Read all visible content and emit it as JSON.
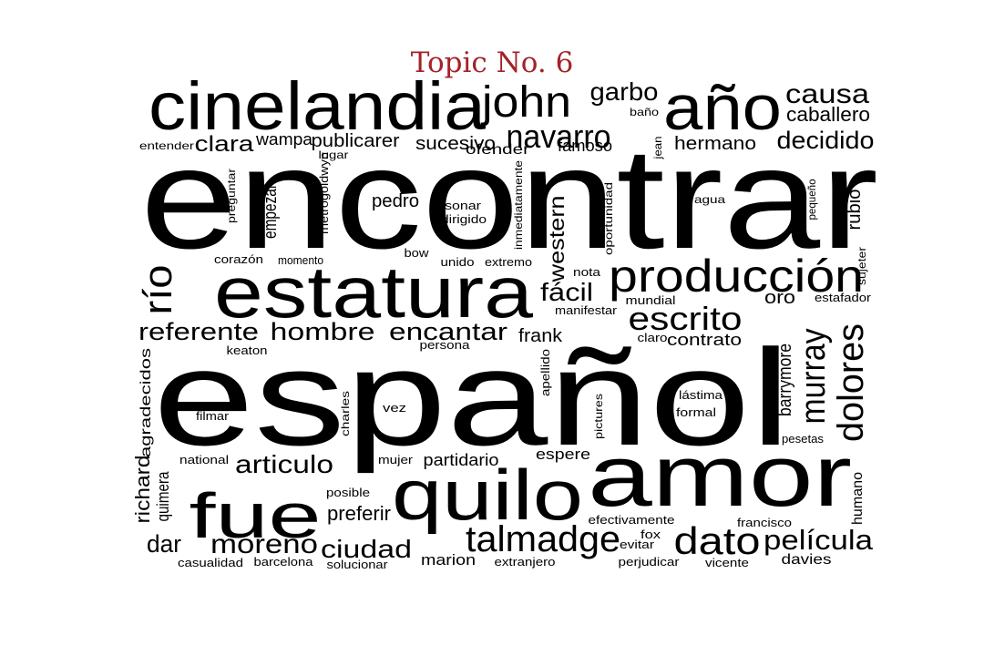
{
  "title": "Topic No. 6",
  "colors": {
    "title": "#a3222a",
    "words": "#000000",
    "background": "#ffffff"
  },
  "words": [
    "encontrar",
    "español",
    "cinelandia",
    "estatura",
    "amor",
    "quilo",
    "fue",
    "año",
    "producción",
    "john",
    "navarro",
    "talmadge",
    "dato",
    "dolores",
    "murray",
    "escrito",
    "río",
    "garbo",
    "causa",
    "caballero",
    "decidido",
    "película",
    "moreno",
    "articulo",
    "hombre",
    "referente",
    "encantar",
    "ciudad",
    "dar",
    "fácil",
    "western",
    "clara",
    "publicarer",
    "sucesivo",
    "hermano",
    "richard",
    "barrymore",
    "preferir",
    "empezar",
    "pedro",
    "rubio",
    "oro",
    "frank",
    "contrato",
    "wampa",
    "ofender",
    "famoso",
    "partidario",
    "espere",
    "quimera",
    "humano",
    "agradecidos",
    "davies",
    "marion",
    "sonar",
    "dirigido",
    "bow",
    "unido",
    "extremo",
    "nota",
    "mundial",
    "manifestar",
    "persona",
    "keaton",
    "claro",
    "lástima",
    "formal",
    "vez",
    "filmar",
    "charles",
    "apellido",
    "pictures",
    "pesetas",
    "national",
    "mujer",
    "posible",
    "efectivamente",
    "fox",
    "evitar",
    "francisco",
    "casualidad",
    "barcelona",
    "solucionar",
    "extranjero",
    "perjudicar",
    "vicente",
    "entender",
    "lugar",
    "metrogoldwyn",
    "preguntar",
    "corazón",
    "momento",
    "inmediatamente",
    "oportunidad",
    "jean",
    "baño",
    "agua",
    "pequeño",
    "sujeter",
    "estafador"
  ]
}
